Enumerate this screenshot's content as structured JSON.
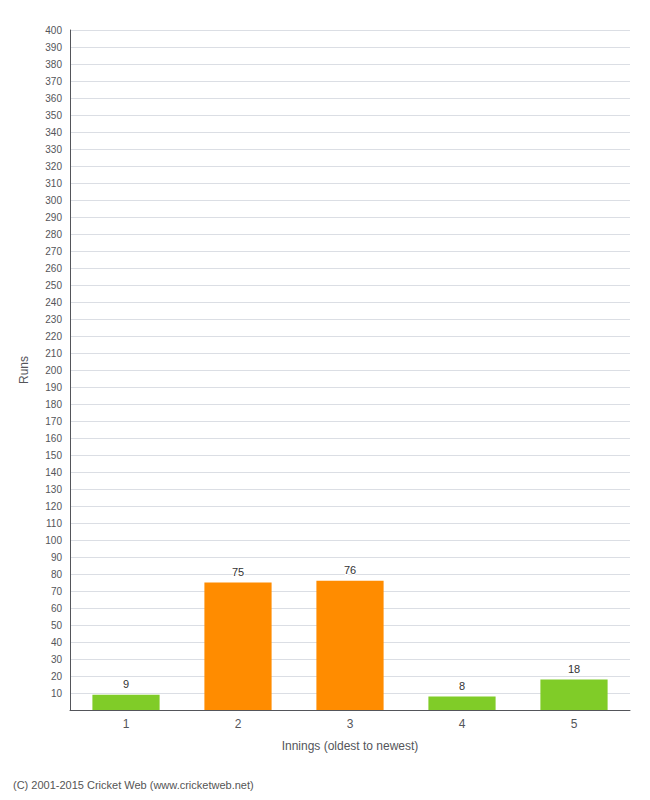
{
  "chart_data": {
    "type": "bar",
    "xlabel": "Innings (oldest to newest)",
    "ylabel": "Runs",
    "categories": [
      1,
      2,
      3,
      4,
      5
    ],
    "values": [
      9,
      75,
      76,
      8,
      18
    ],
    "colors": [
      "#80cc28",
      "#ff8c00",
      "#ff8c00",
      "#80cc28",
      "#80cc28"
    ],
    "ylim": [
      0,
      400
    ],
    "yticks": [
      10,
      20,
      30,
      40,
      50,
      60,
      70,
      80,
      90,
      100,
      110,
      120,
      130,
      140,
      150,
      160,
      170,
      180,
      190,
      200,
      210,
      220,
      230,
      240,
      250,
      260,
      270,
      280,
      290,
      300,
      310,
      320,
      330,
      340,
      350,
      360,
      370,
      380,
      390,
      400
    ],
    "grid": true,
    "data_labels": true,
    "footer": "(C) 2001-2015 Cricket Web (www.cricketweb.net)"
  }
}
